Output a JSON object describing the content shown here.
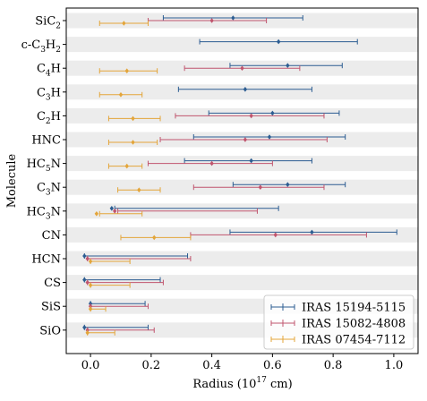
{
  "chart_data": {
    "type": "errorbar",
    "title": "",
    "xlabel": "Radius (10^17 cm)",
    "xlabel_base": "Radius (10",
    "xlabel_exp": "17",
    "xlabel_tail": " cm)",
    "ylabel": "Molecule",
    "xlim": [
      -0.08,
      1.08
    ],
    "xticks": [
      "0.0",
      "0.2",
      "0.4",
      "0.6",
      "0.8",
      "1.0"
    ],
    "grid": false,
    "row_banding": true,
    "legend_position": "lower-right",
    "categories": [
      "SiC2",
      "c-C3H2",
      "C4H",
      "C3H",
      "C2H",
      "HNC",
      "HC5N",
      "C3N",
      "HC3N",
      "CN",
      "HCN",
      "CS",
      "SiS",
      "SiO"
    ],
    "category_labels": [
      [
        [
          "SiC",
          0
        ],
        [
          "2",
          1
        ]
      ],
      [
        [
          "c-C",
          0
        ],
        [
          "3",
          1
        ],
        [
          "H",
          0
        ],
        [
          "2",
          1
        ]
      ],
      [
        [
          "C",
          0
        ],
        [
          "4",
          1
        ],
        [
          "H",
          0
        ]
      ],
      [
        [
          "C",
          0
        ],
        [
          "3",
          1
        ],
        [
          "H",
          0
        ]
      ],
      [
        [
          "C",
          0
        ],
        [
          "2",
          1
        ],
        [
          "H",
          0
        ]
      ],
      [
        [
          "HNC",
          0
        ]
      ],
      [
        [
          "HC",
          0
        ],
        [
          "5",
          1
        ],
        [
          "N",
          0
        ]
      ],
      [
        [
          "C",
          0
        ],
        [
          "3",
          1
        ],
        [
          "N",
          0
        ]
      ],
      [
        [
          "HC",
          0
        ],
        [
          "3",
          1
        ],
        [
          "N",
          0
        ]
      ],
      [
        [
          "CN",
          0
        ]
      ],
      [
        [
          "HCN",
          0
        ]
      ],
      [
        [
          "CS",
          0
        ]
      ],
      [
        [
          "SiS",
          0
        ]
      ],
      [
        [
          "SiO",
          0
        ]
      ]
    ],
    "series": [
      {
        "name": "IRAS 15194-5115",
        "color": "#2c5d92",
        "points": [
          {
            "c": 0,
            "x": 0.47,
            "lo": 0.24,
            "hi": 0.7
          },
          {
            "c": 1,
            "x": 0.62,
            "lo": 0.36,
            "hi": 0.88
          },
          {
            "c": 2,
            "x": 0.65,
            "lo": 0.46,
            "hi": 0.83
          },
          {
            "c": 3,
            "x": 0.51,
            "lo": 0.29,
            "hi": 0.73
          },
          {
            "c": 4,
            "x": 0.6,
            "lo": 0.39,
            "hi": 0.82
          },
          {
            "c": 5,
            "x": 0.59,
            "lo": 0.34,
            "hi": 0.84
          },
          {
            "c": 6,
            "x": 0.53,
            "lo": 0.31,
            "hi": 0.73
          },
          {
            "c": 7,
            "x": 0.65,
            "lo": 0.47,
            "hi": 0.84
          },
          {
            "c": 8,
            "x": 0.36,
            "lo": 0.08,
            "hi": 0.62,
            "marker_x": 0.07
          },
          {
            "c": 9,
            "x": 0.73,
            "lo": 0.46,
            "hi": 1.01
          },
          {
            "c": 10,
            "x": -0.02,
            "lo": -0.02,
            "hi": 0.32
          },
          {
            "c": 11,
            "x": -0.02,
            "lo": -0.02,
            "hi": 0.23
          },
          {
            "c": 12,
            "x": 0.0,
            "lo": 0.0,
            "hi": 0.18
          },
          {
            "c": 13,
            "x": -0.02,
            "lo": -0.02,
            "hi": 0.19
          }
        ]
      },
      {
        "name": "IRAS 15082-4808",
        "color": "#c0556e",
        "points": [
          {
            "c": 0,
            "x": 0.4,
            "lo": 0.19,
            "hi": 0.58
          },
          {
            "c": 2,
            "x": 0.5,
            "lo": 0.31,
            "hi": 0.69
          },
          {
            "c": 4,
            "x": 0.53,
            "lo": 0.28,
            "hi": 0.77
          },
          {
            "c": 5,
            "x": 0.51,
            "lo": 0.23,
            "hi": 0.78
          },
          {
            "c": 6,
            "x": 0.4,
            "lo": 0.19,
            "hi": 0.6
          },
          {
            "c": 7,
            "x": 0.56,
            "lo": 0.34,
            "hi": 0.77
          },
          {
            "c": 8,
            "x": 0.33,
            "lo": 0.09,
            "hi": 0.55,
            "marker_x": 0.08
          },
          {
            "c": 9,
            "x": 0.61,
            "lo": 0.33,
            "hi": 0.91
          },
          {
            "c": 10,
            "x": -0.01,
            "lo": -0.01,
            "hi": 0.33
          },
          {
            "c": 11,
            "x": -0.01,
            "lo": -0.01,
            "hi": 0.24
          },
          {
            "c": 12,
            "x": 0.0,
            "lo": 0.0,
            "hi": 0.19
          },
          {
            "c": 13,
            "x": -0.01,
            "lo": -0.01,
            "hi": 0.21
          }
        ]
      },
      {
        "name": "IRAS 07454-7112",
        "color": "#e3a53a",
        "points": [
          {
            "c": 0,
            "x": 0.11,
            "lo": 0.03,
            "hi": 0.19
          },
          {
            "c": 2,
            "x": 0.12,
            "lo": 0.03,
            "hi": 0.22
          },
          {
            "c": 3,
            "x": 0.1,
            "lo": 0.03,
            "hi": 0.17
          },
          {
            "c": 4,
            "x": 0.14,
            "lo": 0.06,
            "hi": 0.23
          },
          {
            "c": 5,
            "x": 0.14,
            "lo": 0.06,
            "hi": 0.22
          },
          {
            "c": 6,
            "x": 0.12,
            "lo": 0.06,
            "hi": 0.17
          },
          {
            "c": 7,
            "x": 0.16,
            "lo": 0.09,
            "hi": 0.23
          },
          {
            "c": 8,
            "x": 0.1,
            "lo": 0.03,
            "hi": 0.17,
            "marker_x": 0.02
          },
          {
            "c": 9,
            "x": 0.21,
            "lo": 0.1,
            "hi": 0.33
          },
          {
            "c": 10,
            "x": 0.0,
            "lo": 0.0,
            "hi": 0.13
          },
          {
            "c": 11,
            "x": 0.0,
            "lo": 0.0,
            "hi": 0.13
          },
          {
            "c": 12,
            "x": 0.0,
            "lo": 0.0,
            "hi": 0.05
          },
          {
            "c": 13,
            "x": -0.01,
            "lo": -0.01,
            "hi": 0.08
          }
        ]
      }
    ]
  }
}
